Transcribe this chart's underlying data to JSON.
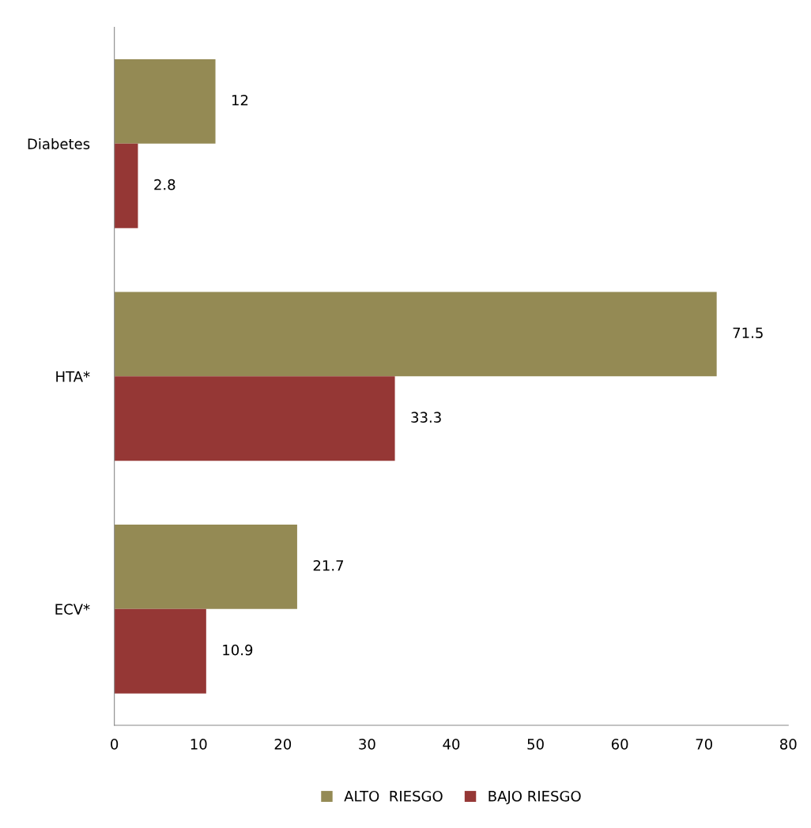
{
  "chart_data": {
    "type": "bar",
    "orientation": "horizontal",
    "categories": [
      "Diabetes",
      "HTA*",
      "ECV*"
    ],
    "series": [
      {
        "name": "ALTO  RIESGO",
        "color": "#948a54",
        "values": [
          12,
          71.5,
          21.7
        ]
      },
      {
        "name": "BAJO RIESGO",
        "color": "#953735",
        "values": [
          2.8,
          33.3,
          10.9
        ]
      }
    ],
    "xlim": [
      0,
      80
    ],
    "xticks": [
      0,
      10,
      20,
      30,
      40,
      50,
      60,
      70,
      80
    ],
    "data_labels": true,
    "grid": false,
    "legend": "bottom"
  }
}
